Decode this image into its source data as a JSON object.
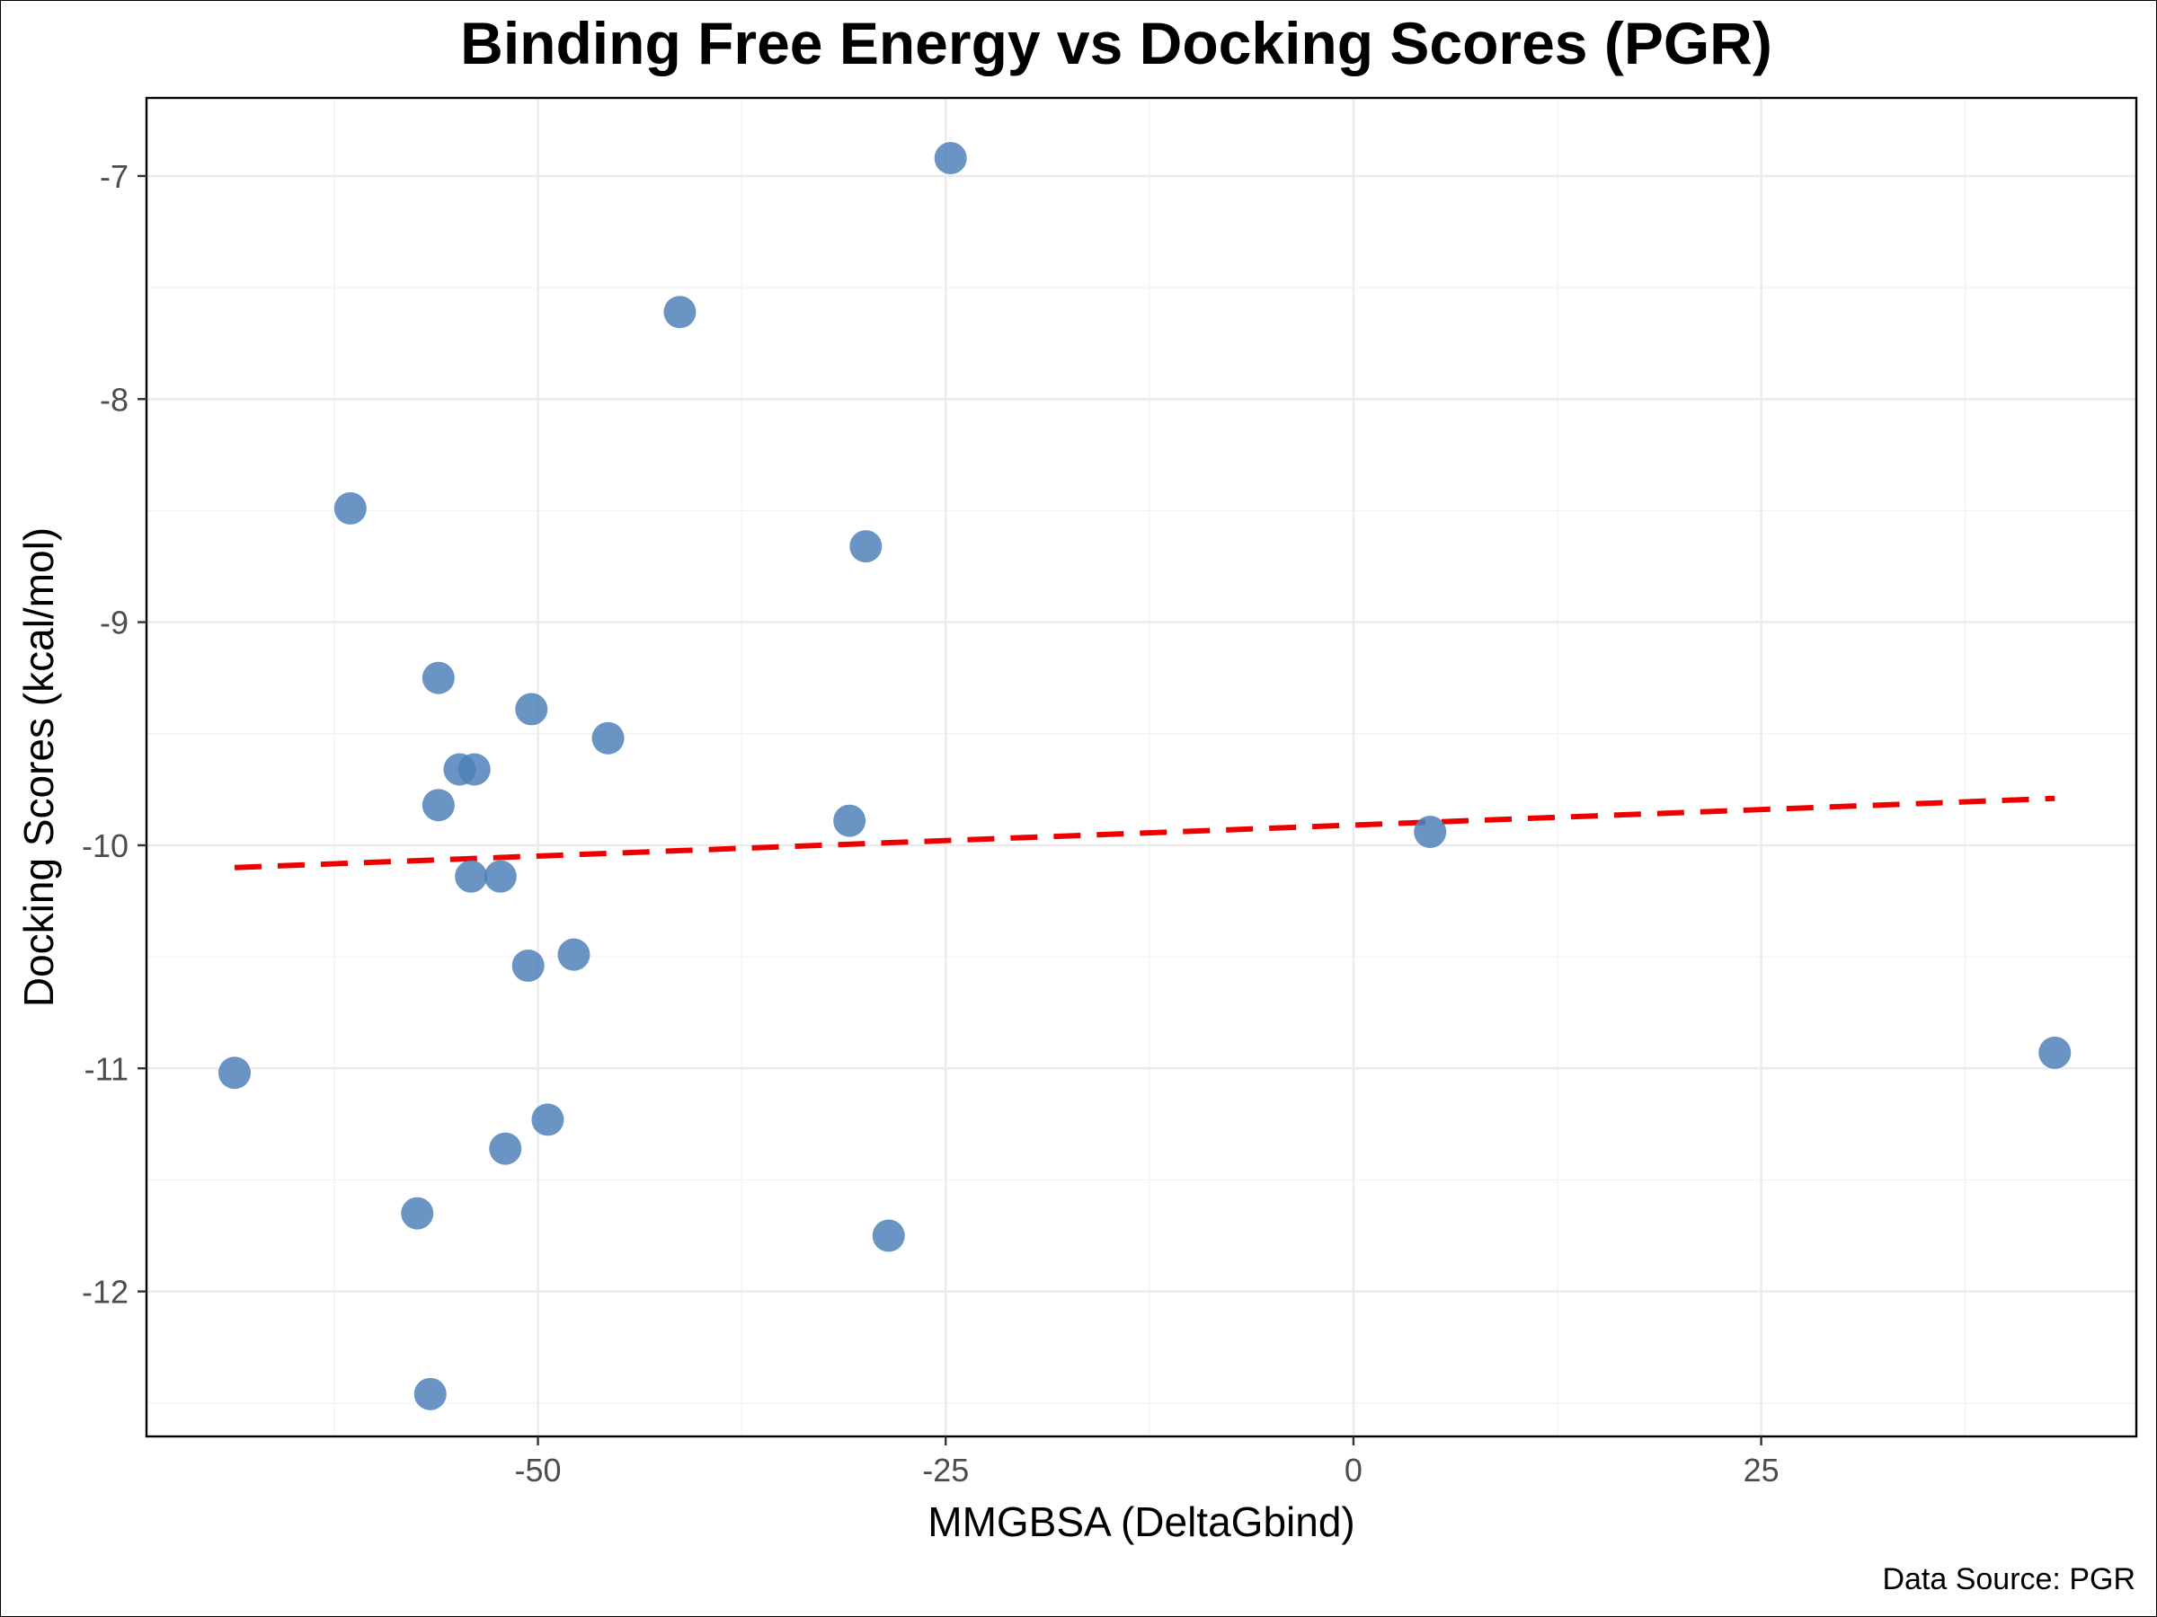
{
  "chart_data": {
    "type": "scatter",
    "title": "Binding Free Energy vs Docking Scores (PGR)",
    "xlabel": "MMGBSA (DeltaGbind)",
    "ylabel": "Docking Scores (kcal/mol)",
    "caption": "Data Source: PGR",
    "xlim": [
      -74,
      48
    ],
    "ylim": [
      -12.65,
      -6.65
    ],
    "x_ticks": [
      -50,
      -25,
      0,
      25
    ],
    "x_tick_labels": [
      "-50",
      "-25",
      "0",
      "25"
    ],
    "y_ticks": [
      -12,
      -11,
      -10,
      -9,
      -8,
      -7
    ],
    "y_tick_labels": [
      "-12",
      "-11",
      "-10",
      "-9",
      "-8",
      "-7"
    ],
    "grid": true,
    "point_color": "#4f81b8",
    "trend_color": "#ee0000",
    "points": [
      {
        "x": -24.7,
        "y": -6.92
      },
      {
        "x": -41.3,
        "y": -7.61
      },
      {
        "x": -61.5,
        "y": -8.49
      },
      {
        "x": -29.9,
        "y": -8.66
      },
      {
        "x": -56.1,
        "y": -9.25
      },
      {
        "x": -50.4,
        "y": -9.39
      },
      {
        "x": -45.7,
        "y": -9.52
      },
      {
        "x": -54.8,
        "y": -9.66
      },
      {
        "x": -53.9,
        "y": -9.66
      },
      {
        "x": -56.1,
        "y": -9.82
      },
      {
        "x": -30.9,
        "y": -9.89
      },
      {
        "x": 4.7,
        "y": -9.94
      },
      {
        "x": -54.1,
        "y": -10.14
      },
      {
        "x": -52.3,
        "y": -10.14
      },
      {
        "x": -47.8,
        "y": -10.49
      },
      {
        "x": -50.6,
        "y": -10.54
      },
      {
        "x": 43.0,
        "y": -10.93
      },
      {
        "x": -68.6,
        "y": -11.02
      },
      {
        "x": -49.4,
        "y": -11.23
      },
      {
        "x": -52.0,
        "y": -11.36
      },
      {
        "x": -57.4,
        "y": -11.65
      },
      {
        "x": -28.5,
        "y": -11.75
      },
      {
        "x": -56.6,
        "y": -12.46
      }
    ],
    "trend_line": {
      "x": [
        -68.6,
        43.0
      ],
      "y": [
        -10.1,
        -9.79
      ]
    }
  }
}
